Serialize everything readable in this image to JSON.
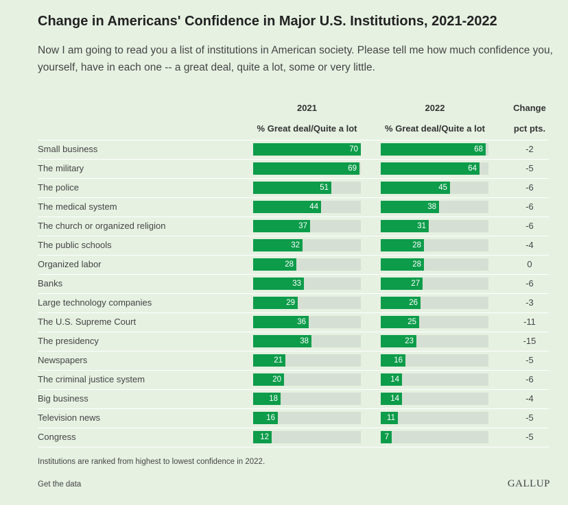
{
  "title": "Change in Americans' Confidence in Major U.S. Institutions, 2021-2022",
  "subtitle": "Now I am going to read you a list of institutions in American society. Please tell me how much confidence you, yourself, have in each one -- a great deal, quite a lot, some or very little.",
  "columns": {
    "y2021": "2021",
    "y2022": "2022",
    "change": "Change",
    "metric_2021": "% Great deal/Quite a lot",
    "metric_2022": "% Great deal/Quite a lot",
    "change_unit": "pct pts."
  },
  "footnote": "Institutions are ranked from highest to lowest confidence in 2022.",
  "get_data": "Get the data",
  "brand": "GALLUP",
  "colors": {
    "bar": "#0c9c4a",
    "track": "#d6dfd3",
    "background": "#e6f1e2"
  },
  "chart_data": {
    "type": "bar",
    "categories": [
      "Small business",
      "The military",
      "The police",
      "The medical system",
      "The church or organized religion",
      "The public schools",
      "Organized labor",
      "Banks",
      "Large technology companies",
      "The U.S. Supreme Court",
      "The presidency",
      "Newspapers",
      "The criminal justice system",
      "Big business",
      "Television news",
      "Congress"
    ],
    "series": [
      {
        "name": "2021",
        "values": [
          70,
          69,
          51,
          44,
          37,
          32,
          28,
          33,
          29,
          36,
          38,
          21,
          20,
          18,
          16,
          12
        ]
      },
      {
        "name": "2022",
        "values": [
          68,
          64,
          45,
          38,
          31,
          28,
          28,
          27,
          26,
          25,
          23,
          16,
          14,
          14,
          11,
          7
        ]
      }
    ],
    "change": [
      "-2",
      "-5",
      "-6",
      "-6",
      "-6",
      "-4",
      "0",
      "-6",
      "-3",
      "-11",
      "-15",
      "-5",
      "-6",
      "-4",
      "-5",
      "-5"
    ],
    "xlim": [
      0,
      70
    ]
  }
}
